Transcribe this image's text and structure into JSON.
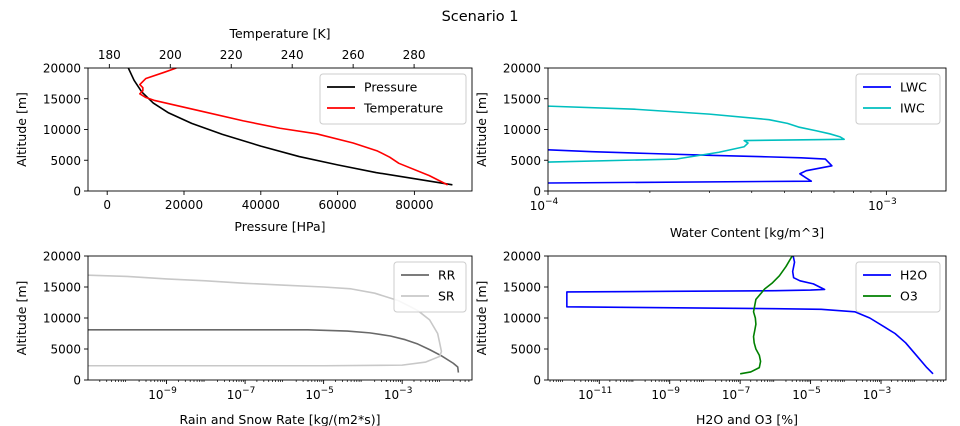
{
  "figure": {
    "title": "Scenario 1"
  },
  "chart_data": [
    {
      "id": "panel1",
      "type": "line",
      "ylabel": "Altitude [m]",
      "xlabel": "Pressure [HPa]",
      "x2label": "Temperature [K]",
      "xscale": "linear",
      "xlim": [
        -5000,
        95000
      ],
      "x2lim": [
        173,
        299
      ],
      "ylim": [
        0,
        20000
      ],
      "xticks": [
        0,
        20000,
        40000,
        60000,
        80000
      ],
      "xticklabels": [
        "0",
        "20000",
        "40000",
        "60000",
        "80000"
      ],
      "x2ticks": [
        180,
        200,
        220,
        240,
        260,
        280
      ],
      "x2ticklabels": [
        "180",
        "200",
        "220",
        "240",
        "260",
        "280"
      ],
      "yticks": [
        0,
        5000,
        10000,
        15000,
        20000
      ],
      "yticklabels": [
        "0",
        "5000",
        "10000",
        "15000",
        "20000"
      ],
      "legend_position": "top-right",
      "series": [
        {
          "name": "Pressure",
          "color": "#000000",
          "axis": "x",
          "x": [
            89900,
            80000,
            70000,
            60000,
            50000,
            40000,
            30000,
            22000,
            16000,
            12000,
            9000,
            7000,
            5500
          ],
          "y": [
            1000,
            2000,
            3000,
            4250,
            5600,
            7300,
            9200,
            11000,
            12700,
            14300,
            16100,
            18000,
            20000
          ]
        },
        {
          "name": "Temperature",
          "color": "#ff0000",
          "axis": "x2",
          "x": [
            291,
            285,
            275,
            272,
            268,
            260,
            248,
            236,
            224,
            210,
            195,
            192,
            190,
            191,
            191,
            190,
            192,
            198,
            202
          ],
          "y": [
            1000,
            2500,
            4500,
            5500,
            6500,
            7800,
            9300,
            10200,
            11400,
            13000,
            14700,
            15200,
            15800,
            16300,
            16800,
            17300,
            18300,
            19300,
            20000
          ]
        }
      ]
    },
    {
      "id": "panel2",
      "type": "line",
      "ylabel": "Altitude [m]",
      "xlabel": "Water Content [kg/m^3]",
      "xscale": "log",
      "xlim": [
        0.0001,
        0.0015
      ],
      "ylim": [
        0,
        20000
      ],
      "xticks": [
        0.0001,
        0.001
      ],
      "xticklabels": [
        "10",
        "10"
      ],
      "xtickexp": [
        "−4",
        "−3"
      ],
      "yticks": [
        0,
        5000,
        10000,
        15000,
        20000
      ],
      "yticklabels": [
        "0",
        "5000",
        "10000",
        "15000",
        "20000"
      ],
      "legend_position": "top-right",
      "series": [
        {
          "name": "LWC",
          "color": "#0000ff",
          "x": [
            0.0001,
            0.0006,
            0.00058,
            0.000555,
            0.00058,
            0.00069,
            0.00066,
            0.00056,
            0.00045,
            0.0003,
            0.0002,
            0.000135,
            0.0001
          ],
          "y": [
            1300,
            1600,
            2100,
            2800,
            3300,
            4100,
            5200,
            5400,
            5550,
            5800,
            6100,
            6400,
            6700
          ]
        },
        {
          "name": "IWC",
          "color": "#00bfbf",
          "x": [
            0.0001,
            0.00024,
            0.00032,
            0.00038,
            0.00039,
            0.00038,
            0.00075,
            0.00073,
            0.00068,
            0.00062,
            0.00055,
            0.00051,
            0.00045,
            0.0003,
            0.00018,
            0.0001
          ],
          "y": [
            4700,
            5200,
            6300,
            7200,
            7800,
            8200,
            8400,
            8800,
            9300,
            9800,
            10400,
            11000,
            11600,
            12500,
            13300,
            13800
          ]
        }
      ]
    },
    {
      "id": "panel3",
      "type": "line",
      "ylabel": "Altitude [m]",
      "xlabel": "Rain and Snow Rate [kg/(m2*s)]",
      "xscale": "log",
      "xlim": [
        1e-11,
        0.06
      ],
      "ylim": [
        0,
        20000
      ],
      "xticks": [
        1e-09,
        1e-07,
        1e-05,
        0.001
      ],
      "xticklabels": [
        "10",
        "10",
        "10",
        "10"
      ],
      "xtickexp": [
        "−9",
        "−7",
        "−5",
        "−3"
      ],
      "yticks": [
        0,
        5000,
        10000,
        15000,
        20000
      ],
      "yticklabels": [
        "0",
        "5000",
        "10000",
        "15000",
        "20000"
      ],
      "legend_position": "top-right",
      "series": [
        {
          "name": "RR",
          "color": "#696969",
          "x": [
            1e-11,
            1e-08,
            1e-06,
            4e-06,
            4e-05,
            0.00015,
            0.0005,
            0.0012,
            0.0025,
            0.005,
            0.01,
            0.02,
            0.026,
            0.027
          ],
          "y": [
            8100,
            8100,
            8100,
            8100,
            7900,
            7600,
            7100,
            6500,
            5800,
            4900,
            3900,
            2700,
            2100,
            1200
          ]
        },
        {
          "name": "SR",
          "color": "#c8c8c8",
          "x": [
            1e-11,
            1e-10,
            1e-09,
            1e-08,
            1e-07,
            1e-06,
            1e-05,
            5e-05,
            0.0002,
            0.0008,
            0.0025,
            0.005,
            0.008,
            0.009,
            0.01,
            0.009,
            0.004,
            0.001,
            1e-05,
            1e-08,
            1e-11
          ],
          "y": [
            16900,
            16700,
            16300,
            16000,
            15600,
            15300,
            15000,
            14700,
            14000,
            12800,
            11200,
            9700,
            7500,
            6000,
            4600,
            3800,
            2900,
            2400,
            2300,
            2300,
            2300
          ]
        }
      ]
    },
    {
      "id": "panel4",
      "type": "line",
      "ylabel": "Altitude [m]",
      "xlabel": "H2O and O3 [%]",
      "xscale": "log",
      "xlim": [
        3.5e-13,
        0.07
      ],
      "ylim": [
        0,
        20000
      ],
      "xticks": [
        1e-11,
        1e-09,
        1e-07,
        1e-05,
        0.001
      ],
      "xticklabels": [
        "10",
        "10",
        "10",
        "10",
        "10"
      ],
      "xtickexp": [
        "−11",
        "−9",
        "−7",
        "−5",
        "−3"
      ],
      "yticks": [
        0,
        5000,
        10000,
        15000,
        20000
      ],
      "yticklabels": [
        "0",
        "5000",
        "10000",
        "15000",
        "20000"
      ],
      "legend_position": "top-right",
      "series": [
        {
          "name": "H2O",
          "color": "#0000ff",
          "x": [
            0.03,
            0.02,
            0.01,
            0.005,
            0.0025,
            0.0013,
            0.00048,
            0.00018,
            2e-05,
            1e-06,
            1e-08,
            1e-10,
            1.2e-12,
            1.2e-12,
            1e-09,
            1e-06,
            1e-05,
            2.5e-05,
            1.2e-05,
            5e-06,
            3.3e-06,
            3.1e-06,
            3.5e-06,
            3.2e-06
          ],
          "y": [
            1000,
            2000,
            4000,
            6000,
            7500,
            8500,
            10000,
            11000,
            11400,
            11500,
            11600,
            11700,
            11800,
            14200,
            14300,
            14400,
            14500,
            14600,
            15500,
            16000,
            16500,
            17500,
            19000,
            20000
          ]
        },
        {
          "name": "O3",
          "color": "#008000",
          "x": [
            1e-07,
            2e-07,
            3.5e-07,
            3.8e-07,
            3.5e-07,
            2.8e-07,
            2.5e-07,
            2.4e-07,
            2.6e-07,
            2.8e-07,
            2.7e-07,
            2.4e-07,
            2.8e-07,
            5e-07,
            8e-07,
            1.3e-06,
            2e-06,
            3e-06
          ],
          "y": [
            1000,
            1300,
            2000,
            3000,
            4000,
            5000,
            6000,
            7000,
            8000,
            9000,
            10000,
            11000,
            13000,
            14700,
            15600,
            16800,
            18300,
            20000
          ]
        }
      ]
    }
  ]
}
